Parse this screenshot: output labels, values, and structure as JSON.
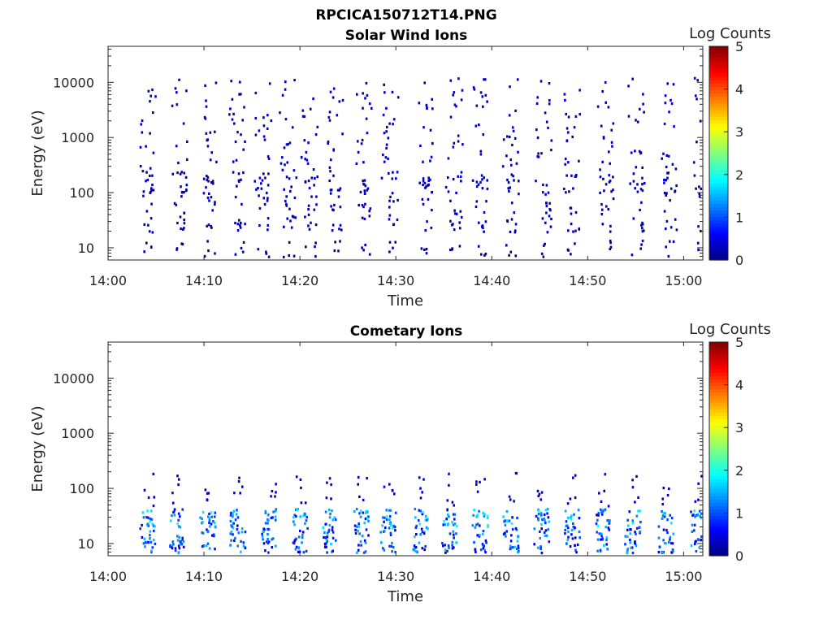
{
  "figure": {
    "title": "RPCICA150712T14.PNG"
  },
  "chart_data": [
    {
      "type": "heatmap",
      "title": "Solar Wind Ions",
      "xlabel": "Time",
      "ylabel": "Energy (eV)",
      "x_ticks": [
        "14:00",
        "14:10",
        "14:20",
        "14:30",
        "14:40",
        "14:50",
        "15:00"
      ],
      "x_range": [
        "14:00",
        "15:02"
      ],
      "y_scale": "log",
      "y_ticks": [
        10,
        100,
        1000,
        10000
      ],
      "y_range": [
        6,
        45000
      ],
      "colorbar": {
        "label": "Log Counts",
        "range": [
          0,
          5
        ],
        "ticks": [
          0,
          1,
          2,
          3,
          4,
          5
        ]
      },
      "colormap": "jet",
      "sweep_times_min": [
        3.5,
        6.8,
        9.9,
        12.9,
        15.5,
        18.2,
        20.4,
        23.1,
        26.0,
        28.8,
        32.5,
        35.5,
        38.2,
        41.4,
        44.8,
        47.7,
        51.3,
        54.5,
        57.9,
        61.3
      ]
    },
    {
      "type": "heatmap",
      "title": "Cometary Ions",
      "xlabel": "Time",
      "ylabel": "Energy (eV)",
      "x_ticks": [
        "14:00",
        "14:10",
        "14:20",
        "14:30",
        "14:40",
        "14:50",
        "15:00"
      ],
      "x_range": [
        "14:00",
        "15:02"
      ],
      "y_scale": "log",
      "y_ticks": [
        10,
        100,
        1000,
        10000
      ],
      "y_range": [
        6,
        45000
      ],
      "colorbar": {
        "label": "Log Counts",
        "range": [
          0,
          5
        ],
        "ticks": [
          0,
          1,
          2,
          3,
          4,
          5
        ]
      },
      "colormap": "jet",
      "sweep_times_min": [
        3.5,
        6.6,
        9.8,
        12.9,
        16.2,
        19.4,
        22.6,
        25.8,
        28.6,
        32.0,
        35.0,
        38.2,
        41.4,
        44.6,
        47.8,
        51.0,
        54.1,
        57.6,
        60.9
      ]
    }
  ]
}
